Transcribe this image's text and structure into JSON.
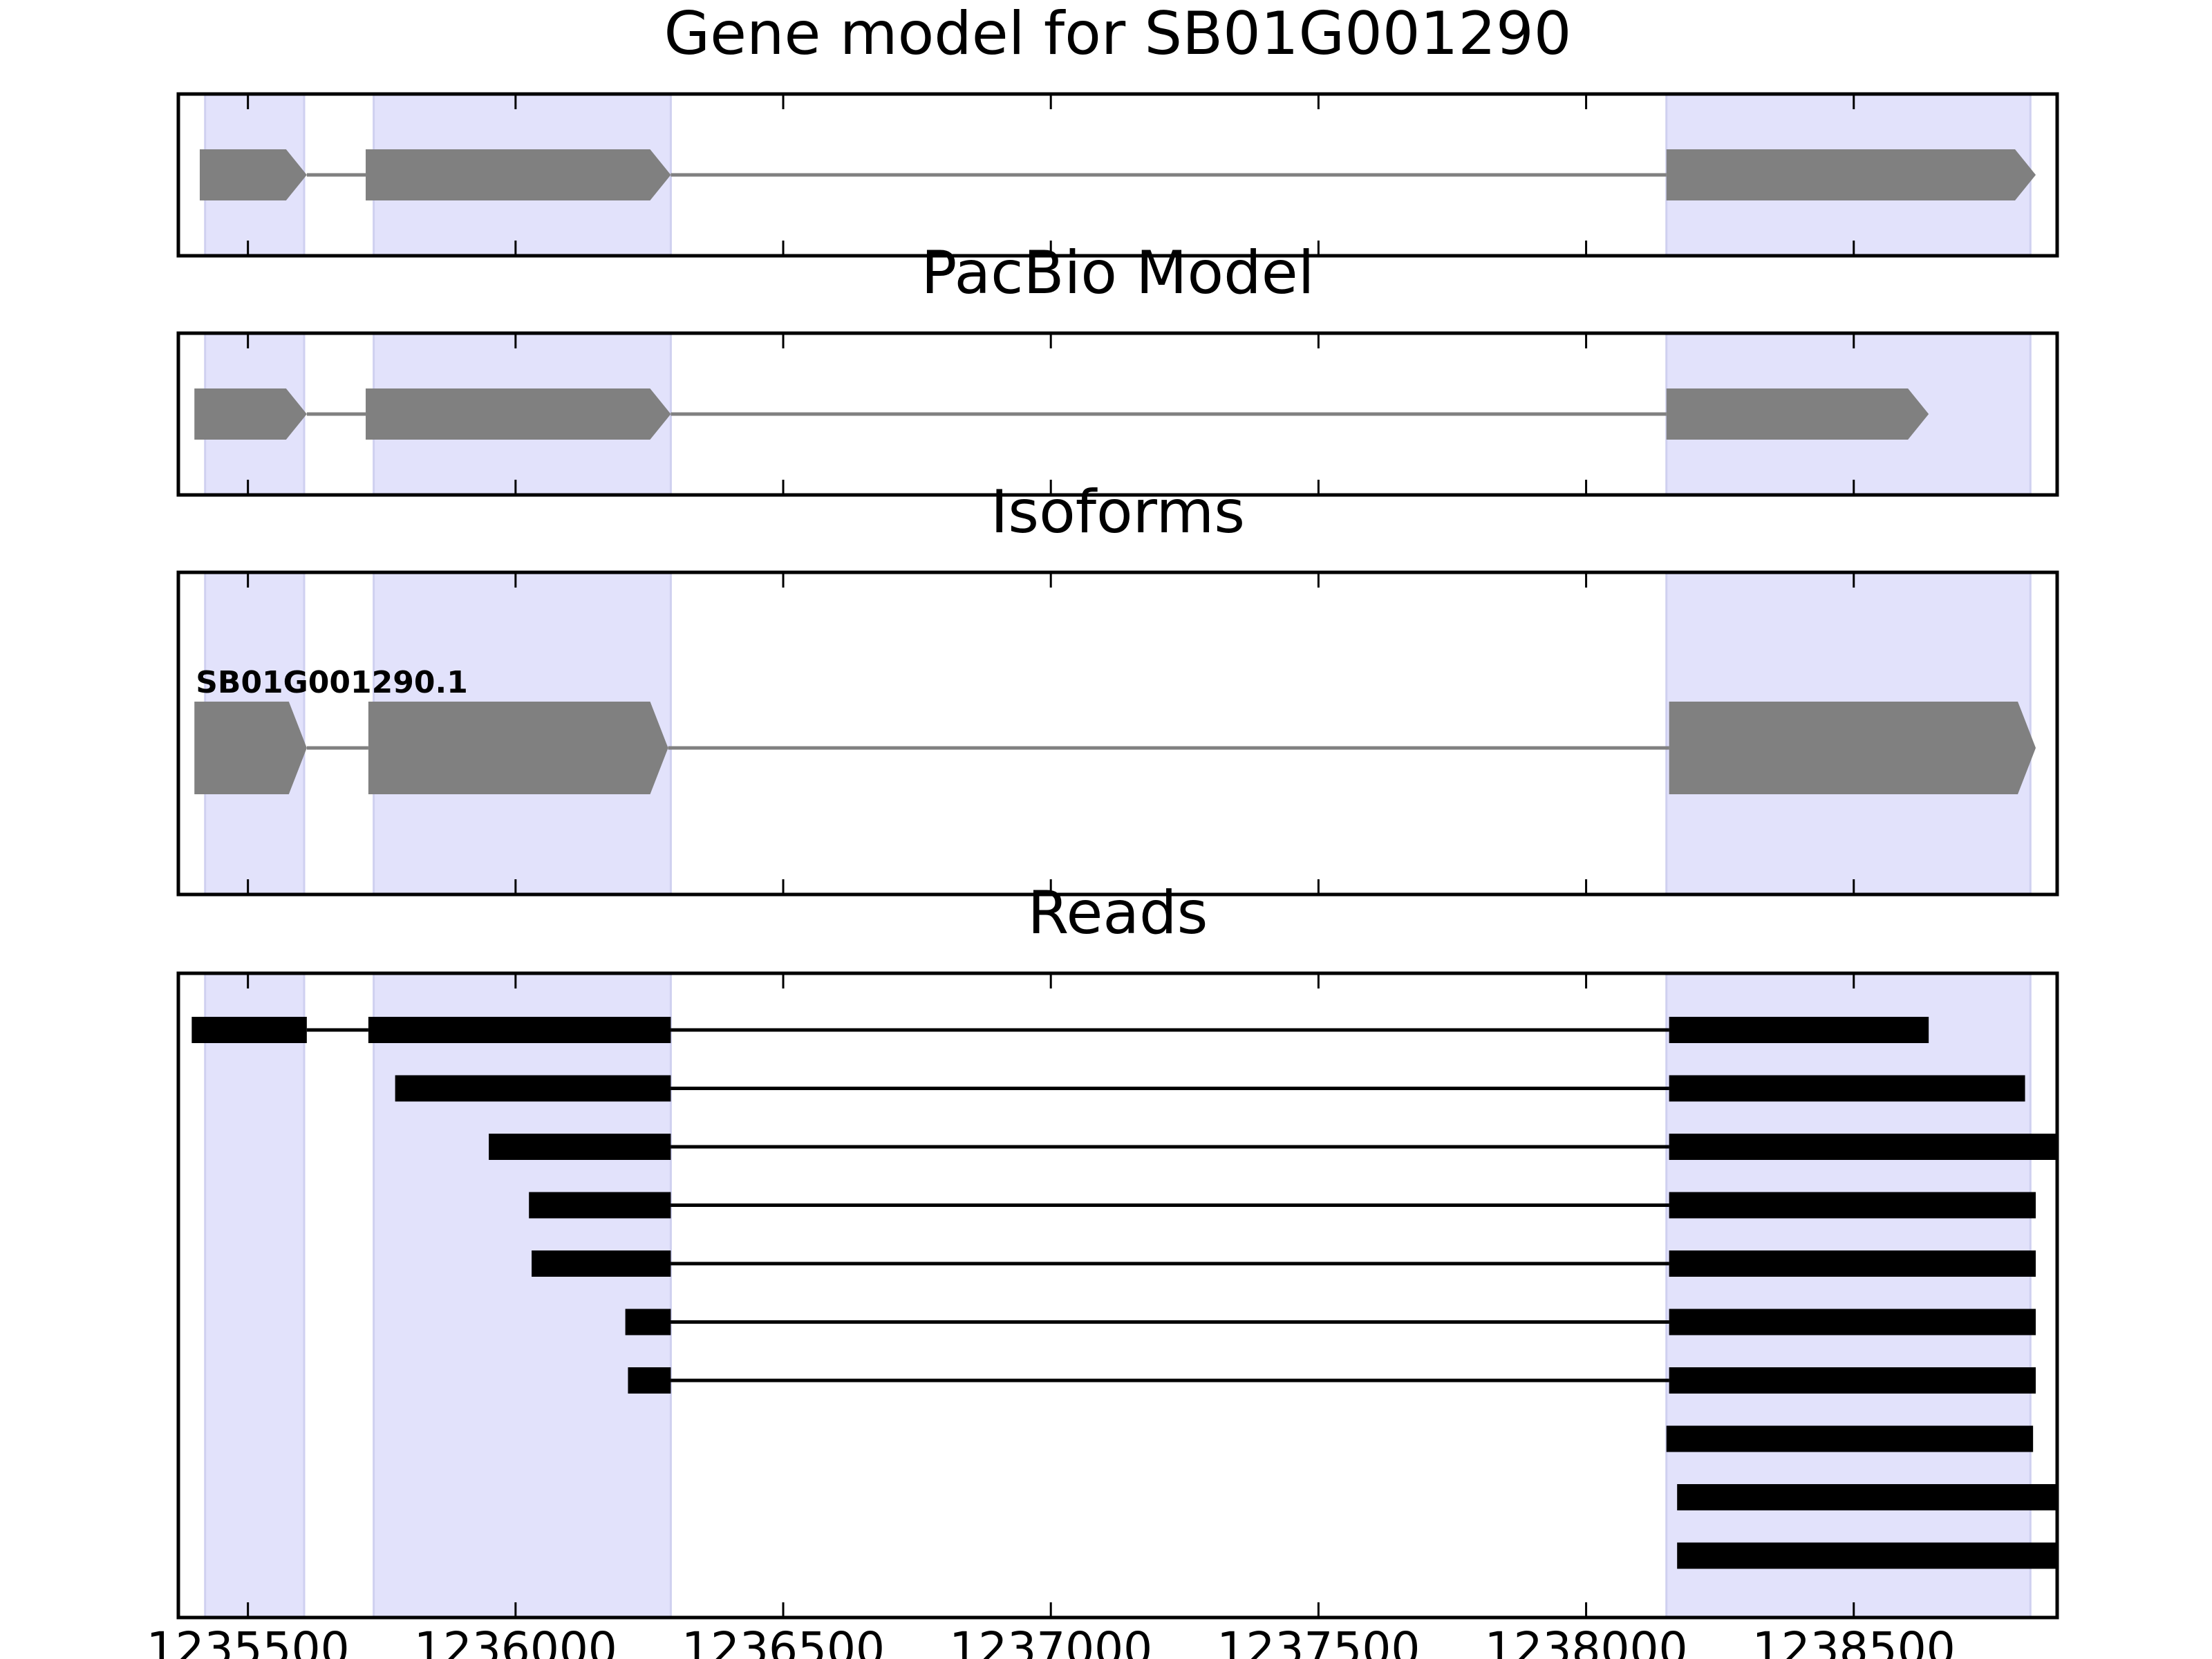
{
  "chart_data": {
    "type": "gene-track",
    "xlim": [
      1235370,
      1238880
    ],
    "x_ticks": [
      1235500,
      1236000,
      1236500,
      1237000,
      1237500,
      1238000,
      1238500
    ],
    "x_tick_labels": [
      "1235500",
      "1236000",
      "1236500",
      "1237000",
      "1237500",
      "1238000",
      "1238500"
    ],
    "highlight_regions": [
      [
        1235420,
        1235605
      ],
      [
        1235735,
        1236290
      ],
      [
        1238150,
        1238830
      ]
    ],
    "colors": {
      "highlight": "#e2e2fb",
      "highlight_edge": "#cfd0f0",
      "feature": "#808080",
      "intron": "#808080",
      "read": "#000000",
      "frame": "#000000"
    },
    "panels": [
      {
        "title": "Gene model for SB01G001290",
        "kind": "gene_model",
        "exons": [
          [
            1235410,
            1235610
          ],
          [
            1235720,
            1236290
          ],
          [
            1238150,
            1238840
          ]
        ]
      },
      {
        "title": "PacBio Model",
        "kind": "gene_model",
        "exons": [
          [
            1235400,
            1235610
          ],
          [
            1235720,
            1236290
          ],
          [
            1238150,
            1238640
          ]
        ]
      },
      {
        "title": "Isoforms",
        "kind": "isoforms",
        "isoforms": [
          {
            "label": "SB01G001290.1",
            "exons": [
              [
                1235400,
                1235610
              ],
              [
                1235725,
                1236285
              ],
              [
                1238155,
                1238840
              ]
            ]
          }
        ]
      },
      {
        "title": "Reads",
        "kind": "reads",
        "reads": [
          [
            [
              1235395,
              1235610
            ],
            [
              1235725,
              1236290
            ],
            [
              1238155,
              1238640
            ]
          ],
          [
            [
              1235775,
              1236290
            ],
            [
              1238155,
              1238820
            ]
          ],
          [
            [
              1235950,
              1236290
            ],
            [
              1238155,
              1238880
            ]
          ],
          [
            [
              1236025,
              1236290
            ],
            [
              1238155,
              1238840
            ]
          ],
          [
            [
              1236030,
              1236290
            ],
            [
              1238155,
              1238840
            ]
          ],
          [
            [
              1236205,
              1236290
            ],
            [
              1238155,
              1238840
            ]
          ],
          [
            [
              1236210,
              1236290
            ],
            [
              1238155,
              1238840
            ]
          ],
          [
            [
              1238150,
              1238835
            ]
          ],
          [
            [
              1238170,
              1238880
            ]
          ],
          [
            [
              1238170,
              1238880
            ]
          ]
        ]
      }
    ]
  }
}
